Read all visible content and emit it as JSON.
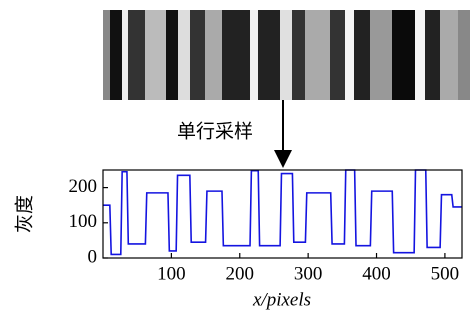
{
  "chart_data": {
    "type": "line",
    "annotation": "单行采样",
    "ylabel": "灰度",
    "xlabel": "x/pixels",
    "xlim": [
      0,
      525
    ],
    "ylim": [
      0,
      250
    ],
    "xticks": [
      100,
      200,
      300,
      400,
      500
    ],
    "yticks": [
      0,
      100,
      200
    ],
    "series": [
      {
        "color": "#1414e0",
        "x": [
          0,
          10,
          12,
          26,
          28,
          35,
          37,
          62,
          64,
          95,
          97,
          107,
          109,
          127,
          129,
          150,
          152,
          174,
          176,
          215,
          217,
          227,
          229,
          259,
          261,
          277,
          279,
          296,
          298,
          333,
          335,
          353,
          355,
          368,
          370,
          391,
          393,
          423,
          425,
          455,
          457,
          472,
          474,
          493,
          495,
          510,
          512,
          525
        ],
        "values": [
          150,
          150,
          10,
          10,
          245,
          245,
          40,
          40,
          185,
          185,
          20,
          20,
          235,
          235,
          45,
          45,
          190,
          190,
          35,
          35,
          248,
          248,
          35,
          35,
          240,
          240,
          45,
          45,
          185,
          185,
          40,
          40,
          250,
          250,
          35,
          35,
          190,
          190,
          15,
          15,
          250,
          250,
          30,
          30,
          180,
          180,
          145,
          145
        ]
      }
    ]
  }
}
